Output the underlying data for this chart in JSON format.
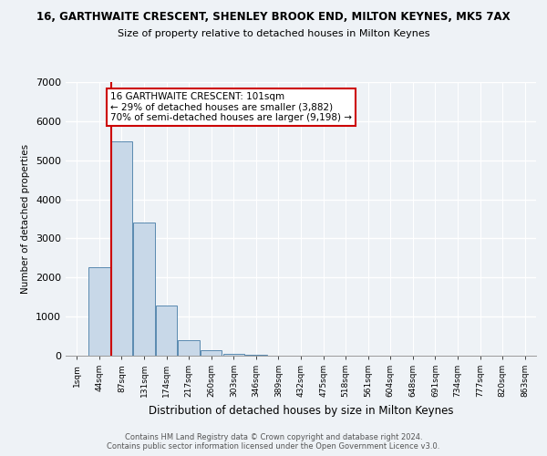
{
  "title": "16, GARTHWAITE CRESCENT, SHENLEY BROOK END, MILTON KEYNES, MK5 7AX",
  "subtitle": "Size of property relative to detached houses in Milton Keynes",
  "xlabel": "Distribution of detached houses by size in Milton Keynes",
  "ylabel": "Number of detached properties",
  "categories": [
    "1sqm",
    "44sqm",
    "87sqm",
    "131sqm",
    "174sqm",
    "217sqm",
    "260sqm",
    "303sqm",
    "346sqm",
    "389sqm",
    "432sqm",
    "475sqm",
    "518sqm",
    "561sqm",
    "604sqm",
    "648sqm",
    "691sqm",
    "734sqm",
    "777sqm",
    "820sqm",
    "863sqm"
  ],
  "bar_values": [
    0,
    2270,
    5480,
    3400,
    1290,
    390,
    130,
    55,
    20,
    0,
    0,
    0,
    0,
    0,
    0,
    0,
    0,
    0,
    0,
    0,
    0
  ],
  "bar_color": "#c8d8e8",
  "bar_edge_color": "#5a8ab0",
  "vline_x": 2,
  "vline_color": "#cc0000",
  "annotation_text": "16 GARTHWAITE CRESCENT: 101sqm\n← 29% of detached houses are smaller (3,882)\n70% of semi-detached houses are larger (9,198) →",
  "annotation_box_color": "#ffffff",
  "annotation_box_edge_color": "#cc0000",
  "ylim": [
    0,
    7000
  ],
  "yticks": [
    0,
    1000,
    2000,
    3000,
    4000,
    5000,
    6000,
    7000
  ],
  "footer_line1": "Contains HM Land Registry data © Crown copyright and database right 2024.",
  "footer_line2": "Contains public sector information licensed under the Open Government Licence v3.0.",
  "bg_color": "#eef2f6",
  "plot_bg_color": "#eef2f6",
  "grid_color": "#ffffff"
}
